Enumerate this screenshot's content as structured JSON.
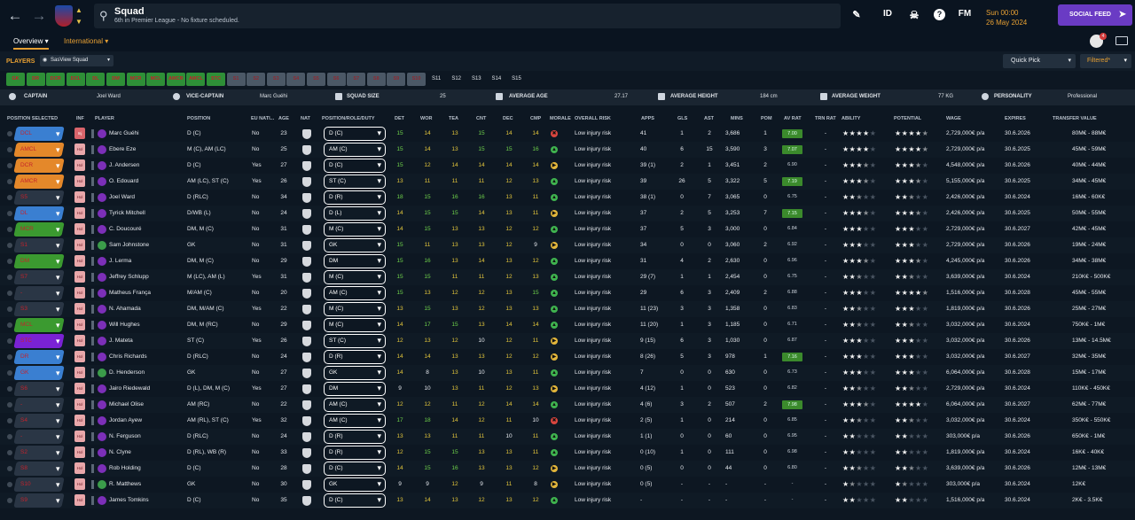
{
  "header": {
    "title": "Squad",
    "subtitle": "6th in Premier League - No fixture scheduled.",
    "date_time": "Sun 00:00",
    "date": "26 May 2024",
    "social_feed": "SOCIAL FEED",
    "id_label": "ID",
    "fm_label": "FM",
    "help": "?",
    "notif_count": "4"
  },
  "tabs": [
    {
      "label": "Overview",
      "active": true
    },
    {
      "label": "International",
      "active": false
    }
  ],
  "players_bar": {
    "label": "PLAYERS",
    "view": "SasView Squad",
    "quick_pick": "Quick Pick",
    "filtered": "Filtered*"
  },
  "position_tabs": [
    {
      "l": "GK",
      "t": "g"
    },
    {
      "l": "DR",
      "t": "g"
    },
    {
      "l": "DCR",
      "t": "g"
    },
    {
      "l": "DCL",
      "t": "g"
    },
    {
      "l": "DL",
      "t": "g"
    },
    {
      "l": "DM",
      "t": "g"
    },
    {
      "l": "MCR",
      "t": "g"
    },
    {
      "l": "MCL",
      "t": "g"
    },
    {
      "l": "AMCR",
      "t": "g"
    },
    {
      "l": "AMCL",
      "t": "g"
    },
    {
      "l": "STC",
      "t": "g"
    },
    {
      "l": "S1",
      "t": "x"
    },
    {
      "l": "S2",
      "t": "x"
    },
    {
      "l": "S3",
      "t": "x"
    },
    {
      "l": "S4",
      "t": "x"
    },
    {
      "l": "S5",
      "t": "x"
    },
    {
      "l": "S6",
      "t": "x"
    },
    {
      "l": "S7",
      "t": "x"
    },
    {
      "l": "S8",
      "t": "x"
    },
    {
      "l": "S9",
      "t": "x"
    },
    {
      "l": "S10",
      "t": "x"
    },
    {
      "l": "S11",
      "t": "s"
    },
    {
      "l": "S12",
      "t": "s"
    },
    {
      "l": "S13",
      "t": "s"
    },
    {
      "l": "S14",
      "t": "s"
    },
    {
      "l": "S15",
      "t": "s"
    }
  ],
  "info": {
    "captain_label": "CAPTAIN",
    "captain": "Joel Ward",
    "vice_label": "VICE-CAPTAIN",
    "vice": "Marc Guéhi",
    "size_label": "SQUAD SIZE",
    "size": "25",
    "age_label": "AVERAGE AGE",
    "age": "27.17",
    "height_label": "AVERAGE HEIGHT",
    "height": "184 cm",
    "weight_label": "AVERAGE WEIGHT",
    "weight": "77 KG",
    "personality_label": "PERSONALITY",
    "personality": "Professional"
  },
  "columns": [
    "POSITION SELECTED",
    "INF",
    "PLAYER",
    "POSITION",
    "EU NATI...",
    "AGE",
    "NAT",
    "POSITION/ROLE/DUTY",
    "DET",
    "WOR",
    "TEA",
    "CNT",
    "DEC",
    "CMP",
    "MORALE",
    "OVERALL RISK",
    "APPS",
    "GLS",
    "AST",
    "MINS",
    "POM",
    "AV RAT",
    "TRN RAT",
    "ABILITY",
    "POTENTIAL",
    "WAGE",
    "EXPIRES",
    "TRANSFER VALUE"
  ],
  "colors": {
    "pos_blue": "#3a7fd1",
    "pos_orange": "#e4882a",
    "pos_green": "#3b9a30",
    "pos_purple": "#7a22d4",
    "pos_sub": "#2a3645",
    "pos_subred": "#3b2a35"
  },
  "players": [
    {
      "sel": "DCL",
      "sc": "blue",
      "inf": "Inj",
      "name": "Marc Guéhi",
      "pos": "D (C)",
      "eu": "No",
      "age": "23",
      "role": "D (C)",
      "det": "15",
      "wor": "14",
      "tea": "13",
      "cnt": "15",
      "dec": "14",
      "cmp": "14",
      "mor": "r",
      "risk": "Low injury risk",
      "apps": "41",
      "gls": "1",
      "ast": "2",
      "mins": "3,686",
      "pom": "1",
      "avr": "7.00",
      "hl": true,
      "trn": "-",
      "ab": 4,
      "po": 4.5,
      "wage": "2,729,000€ p/a",
      "exp": "30.6.2026",
      "val": "80M€ - 88M€"
    },
    {
      "sel": "AMCL",
      "sc": "orange",
      "inf": "Hol",
      "name": "Ebere Eze",
      "pos": "M (C), AM (LC)",
      "eu": "No",
      "age": "25",
      "role": "AM (C)",
      "det": "15",
      "wor": "14",
      "tea": "13",
      "cnt": "15",
      "dec": "15",
      "cmp": "16",
      "mor": "g",
      "risk": "Low injury risk",
      "apps": "40",
      "gls": "6",
      "ast": "15",
      "mins": "3,590",
      "pom": "3",
      "avr": "7.07",
      "hl": true,
      "trn": "-",
      "ab": 4,
      "po": 4.5,
      "wage": "2,729,000€ p/a",
      "exp": "30.6.2025",
      "val": "45M€ - 59M€"
    },
    {
      "sel": "DCR",
      "sc": "orange",
      "inf": "Hol",
      "name": "J. Andersen",
      "pos": "D (C)",
      "eu": "Yes",
      "age": "27",
      "role": "D (C)",
      "det": "15",
      "wor": "12",
      "tea": "14",
      "cnt": "14",
      "dec": "14",
      "cmp": "14",
      "mor": "y",
      "risk": "Low injury risk",
      "apps": "39 (1)",
      "gls": "2",
      "ast": "1",
      "mins": "3,451",
      "pom": "2",
      "avr": "6.90",
      "hl": false,
      "trn": "-",
      "ab": 3.5,
      "po": 3.5,
      "wage": "4,548,000€ p/a",
      "exp": "30.6.2026",
      "val": "40M€ - 44M€"
    },
    {
      "sel": "AMCR",
      "sc": "orange",
      "inf": "Hol",
      "name": "O. Edouard",
      "pos": "AM (LC), ST (C)",
      "eu": "Yes",
      "age": "26",
      "role": "ST (C)",
      "det": "13",
      "wor": "11",
      "tea": "11",
      "cnt": "11",
      "dec": "12",
      "cmp": "13",
      "mor": "g",
      "risk": "Low injury risk",
      "apps": "39",
      "gls": "26",
      "ast": "5",
      "mins": "3,322",
      "pom": "5",
      "avr": "7.19",
      "hl": true,
      "trn": "-",
      "ab": 3.5,
      "po": 3.5,
      "wage": "5,155,000€ p/a",
      "exp": "30.6.2025",
      "val": "34M€ - 45M€"
    },
    {
      "sel": "S5",
      "sc": "sub",
      "inf": "Hol",
      "name": "Joel Ward",
      "pos": "D (RLC)",
      "eu": "No",
      "age": "34",
      "role": "D (R)",
      "det": "18",
      "wor": "15",
      "tea": "16",
      "cnt": "16",
      "dec": "13",
      "cmp": "11",
      "mor": "g",
      "risk": "Low injury risk",
      "apps": "38 (1)",
      "gls": "0",
      "ast": "7",
      "mins": "3,065",
      "pom": "0",
      "avr": "6.75",
      "hl": false,
      "trn": "-",
      "ab": 2.5,
      "po": 2.5,
      "wage": "2,426,000€ p/a",
      "exp": "30.6.2024",
      "val": "16M€ - 60K€"
    },
    {
      "sel": "DL",
      "sc": "blue",
      "inf": "Hol",
      "name": "Tyrick Mitchell",
      "pos": "D/WB (L)",
      "eu": "No",
      "age": "24",
      "role": "D (L)",
      "det": "14",
      "wor": "15",
      "tea": "15",
      "cnt": "14",
      "dec": "13",
      "cmp": "11",
      "mor": "y",
      "risk": "Low injury risk",
      "apps": "37",
      "gls": "2",
      "ast": "5",
      "mins": "3,253",
      "pom": "7",
      "avr": "7.15",
      "hl": true,
      "trn": "-",
      "ab": 3.5,
      "po": 3.5,
      "wage": "2,426,000€ p/a",
      "exp": "30.6.2025",
      "val": "50M€ - 55M€"
    },
    {
      "sel": "MCR",
      "sc": "green",
      "inf": "Hol",
      "name": "C. Doucouré",
      "pos": "DM, M (C)",
      "eu": "No",
      "age": "31",
      "role": "M (C)",
      "det": "14",
      "wor": "15",
      "tea": "13",
      "cnt": "13",
      "dec": "12",
      "cmp": "12",
      "mor": "g",
      "risk": "Low injury risk",
      "apps": "37",
      "gls": "5",
      "ast": "3",
      "mins": "3,000",
      "pom": "0",
      "avr": "6.84",
      "hl": false,
      "trn": "-",
      "ab": 3,
      "po": 3,
      "wage": "2,729,000€ p/a",
      "exp": "30.6.2027",
      "val": "42M€ - 45M€"
    },
    {
      "sel": "S1",
      "sc": "sub",
      "inf": "Hol",
      "name": "Sam Johnstone",
      "pos": "GK",
      "eu": "No",
      "age": "31",
      "role": "GK",
      "det": "15",
      "wor": "11",
      "tea": "13",
      "cnt": "13",
      "dec": "12",
      "cmp": "9",
      "mor": "y",
      "risk": "Low injury risk",
      "apps": "34",
      "gls": "0",
      "ast": "0",
      "mins": "3,060",
      "pom": "2",
      "avr": "6.92",
      "hl": false,
      "trn": "-",
      "ab": 3,
      "po": 3,
      "wage": "2,729,000€ p/a",
      "exp": "30.6.2026",
      "val": "19M€ - 24M€"
    },
    {
      "sel": "DM",
      "sc": "green",
      "inf": "Hol",
      "name": "J. Lerma",
      "pos": "DM, M (C)",
      "eu": "No",
      "age": "29",
      "role": "DM",
      "det": "15",
      "wor": "16",
      "tea": "13",
      "cnt": "14",
      "dec": "13",
      "cmp": "12",
      "mor": "g",
      "risk": "Low injury risk",
      "apps": "31",
      "gls": "4",
      "ast": "2",
      "mins": "2,630",
      "pom": "0",
      "avr": "6.96",
      "hl": false,
      "trn": "-",
      "ab": 3.5,
      "po": 3.5,
      "wage": "4,245,000€ p/a",
      "exp": "30.6.2026",
      "val": "34M€ - 38M€"
    },
    {
      "sel": "S7",
      "sc": "sub",
      "inf": "Hol",
      "name": "Jeffrey Schlupp",
      "pos": "M (LC), AM (L)",
      "eu": "Yes",
      "age": "31",
      "role": "M (C)",
      "det": "15",
      "wor": "15",
      "tea": "11",
      "cnt": "11",
      "dec": "12",
      "cmp": "13",
      "mor": "g",
      "risk": "Low injury risk",
      "apps": "29 (7)",
      "gls": "1",
      "ast": "1",
      "mins": "2,454",
      "pom": "0",
      "avr": "6.75",
      "hl": false,
      "trn": "-",
      "ab": 2.5,
      "po": 2.5,
      "wage": "3,639,000€ p/a",
      "exp": "30.6.2024",
      "val": "210K€ - 500K€"
    },
    {
      "sel": "-",
      "sc": "sub",
      "inf": "Hol",
      "name": "Matheus França",
      "pos": "M/AM (C)",
      "eu": "No",
      "age": "20",
      "role": "AM (C)",
      "det": "15",
      "wor": "13",
      "tea": "12",
      "cnt": "12",
      "dec": "13",
      "cmp": "15",
      "mor": "g",
      "risk": "Low injury risk",
      "apps": "29",
      "gls": "6",
      "ast": "3",
      "mins": "2,409",
      "pom": "2",
      "avr": "6.88",
      "hl": false,
      "trn": "-",
      "ab": 3,
      "po": 4.5,
      "wage": "1,516,000€ p/a",
      "exp": "30.6.2028",
      "val": "45M€ - 55M€"
    },
    {
      "sel": "S3",
      "sc": "sub",
      "inf": "Hol",
      "name": "N. Ahamada",
      "pos": "DM, M/AM (C)",
      "eu": "Yes",
      "age": "22",
      "role": "M (C)",
      "det": "13",
      "wor": "15",
      "tea": "13",
      "cnt": "12",
      "dec": "13",
      "cmp": "13",
      "mor": "g",
      "risk": "Low injury risk",
      "apps": "11 (23)",
      "gls": "3",
      "ast": "3",
      "mins": "1,358",
      "pom": "0",
      "avr": "6.83",
      "hl": false,
      "trn": "-",
      "ab": 2.5,
      "po": 3,
      "wage": "1,819,000€ p/a",
      "exp": "30.6.2026",
      "val": "25M€ - 27M€"
    },
    {
      "sel": "MCL",
      "sc": "green",
      "inf": "Hol",
      "name": "Will Hughes",
      "pos": "DM, M (RC)",
      "eu": "No",
      "age": "29",
      "role": "M (C)",
      "det": "14",
      "wor": "17",
      "tea": "15",
      "cnt": "13",
      "dec": "14",
      "cmp": "14",
      "mor": "g",
      "risk": "Low injury risk",
      "apps": "11 (20)",
      "gls": "1",
      "ast": "3",
      "mins": "1,185",
      "pom": "0",
      "avr": "6.71",
      "hl": false,
      "trn": "-",
      "ab": 2.5,
      "po": 2.5,
      "wage": "3,032,000€ p/a",
      "exp": "30.6.2024",
      "val": "750K€ - 1M€"
    },
    {
      "sel": "STC",
      "sc": "purple",
      "inf": "Hol",
      "name": "J. Mateta",
      "pos": "ST (C)",
      "eu": "Yes",
      "age": "26",
      "role": "ST (C)",
      "det": "12",
      "wor": "13",
      "tea": "12",
      "cnt": "10",
      "dec": "12",
      "cmp": "11",
      "mor": "y",
      "risk": "Low injury risk",
      "apps": "9 (15)",
      "gls": "6",
      "ast": "3",
      "mins": "1,030",
      "pom": "0",
      "avr": "6.87",
      "hl": false,
      "trn": "-",
      "ab": 3,
      "po": 3,
      "wage": "3,032,000€ p/a",
      "exp": "30.6.2026",
      "val": "13M€ - 14.5M€"
    },
    {
      "sel": "DR",
      "sc": "blue",
      "inf": "Hol",
      "name": "Chris Richards",
      "pos": "D (RLC)",
      "eu": "No",
      "age": "24",
      "role": "D (R)",
      "det": "14",
      "wor": "14",
      "tea": "13",
      "cnt": "13",
      "dec": "12",
      "cmp": "12",
      "mor": "y",
      "risk": "Low injury risk",
      "apps": "8 (26)",
      "gls": "5",
      "ast": "3",
      "mins": "978",
      "pom": "1",
      "avr": "7.16",
      "hl": true,
      "trn": "-",
      "ab": 3,
      "po": 3,
      "wage": "3,032,000€ p/a",
      "exp": "30.6.2027",
      "val": "32M€ - 35M€"
    },
    {
      "sel": "GK",
      "sc": "blue",
      "inf": "Hol",
      "name": "D. Henderson",
      "pos": "GK",
      "eu": "No",
      "age": "27",
      "role": "GK",
      "det": "14",
      "wor": "8",
      "tea": "13",
      "cnt": "10",
      "dec": "13",
      "cmp": "11",
      "mor": "g",
      "risk": "Low injury risk",
      "apps": "7",
      "gls": "0",
      "ast": "0",
      "mins": "630",
      "pom": "0",
      "avr": "6.73",
      "hl": false,
      "trn": "-",
      "ab": 3,
      "po": 3,
      "wage": "6,064,000€ p/a",
      "exp": "30.6.2028",
      "val": "15M€ - 17M€"
    },
    {
      "sel": "S6",
      "sc": "sub",
      "inf": "Hol",
      "name": "Jairo Riedewald",
      "pos": "D (L), DM, M (C)",
      "eu": "Yes",
      "age": "27",
      "role": "DM",
      "det": "9",
      "wor": "10",
      "tea": "13",
      "cnt": "11",
      "dec": "12",
      "cmp": "13",
      "mor": "y",
      "risk": "Low injury risk",
      "apps": "4 (12)",
      "gls": "1",
      "ast": "0",
      "mins": "523",
      "pom": "0",
      "avr": "6.82",
      "hl": false,
      "trn": "-",
      "ab": 2.5,
      "po": 2.5,
      "wage": "2,729,000€ p/a",
      "exp": "30.6.2024",
      "val": "110K€ - 450K€"
    },
    {
      "sel": "-",
      "sc": "sub",
      "inf": "Hol",
      "name": "Michael Olise",
      "pos": "AM (RC)",
      "eu": "No",
      "age": "22",
      "role": "AM (C)",
      "det": "12",
      "wor": "12",
      "tea": "11",
      "cnt": "12",
      "dec": "14",
      "cmp": "14",
      "mor": "g",
      "risk": "Low injury risk",
      "apps": "4 (6)",
      "gls": "3",
      "ast": "2",
      "mins": "507",
      "pom": "2",
      "avr": "7.98",
      "hl": true,
      "trn": "-",
      "ab": 3.5,
      "po": 4,
      "wage": "6,064,000€ p/a",
      "exp": "30.6.2027",
      "val": "62M€ - 77M€"
    },
    {
      "sel": "S4",
      "sc": "sub",
      "inf": "Hol",
      "name": "Jordan Ayew",
      "pos": "AM (RL), ST (C)",
      "eu": "Yes",
      "age": "32",
      "role": "AM (C)",
      "det": "17",
      "wor": "18",
      "tea": "14",
      "cnt": "12",
      "dec": "11",
      "cmp": "10",
      "mor": "r",
      "risk": "Low injury risk",
      "apps": "2 (5)",
      "gls": "1",
      "ast": "0",
      "mins": "214",
      "pom": "0",
      "avr": "6.85",
      "hl": false,
      "trn": "-",
      "ab": 2.5,
      "po": 2.5,
      "wage": "3,032,000€ p/a",
      "exp": "30.6.2024",
      "val": "350K€ - 550K€"
    },
    {
      "sel": "-",
      "sc": "sub",
      "inf": "Hol",
      "name": "N. Ferguson",
      "pos": "D (RLC)",
      "eu": "No",
      "age": "24",
      "role": "D (R)",
      "det": "13",
      "wor": "13",
      "tea": "11",
      "cnt": "11",
      "dec": "10",
      "cmp": "11",
      "mor": "g",
      "risk": "Low injury risk",
      "apps": "1 (1)",
      "gls": "0",
      "ast": "0",
      "mins": "60",
      "pom": "0",
      "avr": "6.95",
      "hl": false,
      "trn": "-",
      "ab": 2,
      "po": 2,
      "wage": "303,000€ p/a",
      "exp": "30.6.2026",
      "val": "650K€ - 1M€"
    },
    {
      "sel": "S2",
      "sc": "sub",
      "inf": "Hol",
      "name": "N. Clyne",
      "pos": "D (RL), WB (R)",
      "eu": "No",
      "age": "33",
      "role": "D (R)",
      "det": "12",
      "wor": "15",
      "tea": "15",
      "cnt": "13",
      "dec": "13",
      "cmp": "11",
      "mor": "g",
      "risk": "Low injury risk",
      "apps": "0 (10)",
      "gls": "1",
      "ast": "0",
      "mins": "111",
      "pom": "0",
      "avr": "6.98",
      "hl": false,
      "trn": "-",
      "ab": 2,
      "po": 2,
      "wage": "1,819,000€ p/a",
      "exp": "30.6.2024",
      "val": "16K€ - 40K€"
    },
    {
      "sel": "S8",
      "sc": "sub",
      "inf": "Hol",
      "name": "Rob Holding",
      "pos": "D (C)",
      "eu": "No",
      "age": "28",
      "role": "D (C)",
      "det": "14",
      "wor": "15",
      "tea": "16",
      "cnt": "13",
      "dec": "13",
      "cmp": "12",
      "mor": "y",
      "risk": "Low injury risk",
      "apps": "0 (5)",
      "gls": "0",
      "ast": "0",
      "mins": "44",
      "pom": "0",
      "avr": "6.80",
      "hl": false,
      "trn": "-",
      "ab": 2.5,
      "po": 2.5,
      "wage": "3,639,000€ p/a",
      "exp": "30.6.2026",
      "val": "12M€ - 13M€"
    },
    {
      "sel": "S10",
      "sc": "sub",
      "inf": "Hol",
      "name": "R. Matthews",
      "pos": "GK",
      "eu": "No",
      "age": "30",
      "role": "GK",
      "det": "9",
      "wor": "9",
      "tea": "12",
      "cnt": "9",
      "dec": "11",
      "cmp": "8",
      "mor": "y",
      "risk": "Low injury risk",
      "apps": "0 (5)",
      "gls": "-",
      "ast": "-",
      "mins": "-",
      "pom": "-",
      "avr": "-",
      "hl": false,
      "trn": "-",
      "ab": 1.5,
      "po": 1.5,
      "wage": "303,000€ p/a",
      "exp": "30.6.2024",
      "val": "12K€"
    },
    {
      "sel": "S9",
      "sc": "sub",
      "inf": "Hol",
      "name": "James Tomkins",
      "pos": "D (C)",
      "eu": "No",
      "age": "35",
      "role": "D (C)",
      "det": "13",
      "wor": "14",
      "tea": "13",
      "cnt": "12",
      "dec": "13",
      "cmp": "12",
      "mor": "g",
      "risk": "Low injury risk",
      "apps": "-",
      "gls": "-",
      "ast": "-",
      "mins": "-",
      "pom": "-",
      "avr": "-",
      "hl": false,
      "trn": "-",
      "ab": 2,
      "po": 2,
      "wage": "1,516,000€ p/a",
      "exp": "30.6.2024",
      "val": "2K€ - 3.5K€"
    }
  ]
}
